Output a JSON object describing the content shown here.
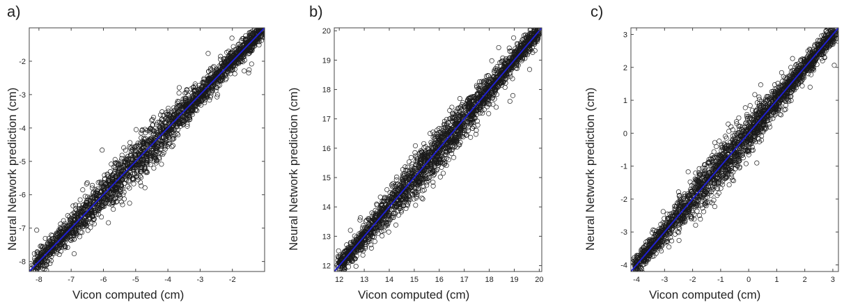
{
  "chart_data": [
    {
      "type": "scatter",
      "panel_label": "a)",
      "xlabel": "Vicon computed (cm)",
      "ylabel": "Neural Network prediction (cm)",
      "xlim": [
        -8.3,
        -1.0
      ],
      "ylim": [
        -8.3,
        -1.0
      ],
      "x_ticks": [
        "-8",
        "-7",
        "-6",
        "-5",
        "-4",
        "-3",
        "-2"
      ],
      "x_tick_values": [
        -8,
        -7,
        -6,
        -5,
        -4,
        -3,
        -2
      ],
      "y_ticks": [
        "-8",
        "-7",
        "-6",
        "-5",
        "-4",
        "-3",
        "-2"
      ],
      "y_tick_values": [
        -8,
        -7,
        -6,
        -5,
        -4,
        -3,
        -2
      ],
      "fit_line": [
        [
          -8.3,
          -8.3
        ],
        [
          -1.0,
          -1.0
        ]
      ],
      "point_range": [
        -8.2,
        -1.05
      ],
      "n_points": 2400,
      "grid": false,
      "marker": "open-circle",
      "marker_color": "#1a1a1a",
      "line_color": "#1f1fd0"
    },
    {
      "type": "scatter",
      "panel_label": "b)",
      "xlabel": "Vicon computed (cm)",
      "ylabel": "Neural Network prediction (cm)",
      "xlim": [
        11.8,
        20.1
      ],
      "ylim": [
        11.8,
        20.1
      ],
      "x_ticks": [
        "12",
        "13",
        "14",
        "15",
        "16",
        "17",
        "18",
        "19",
        "20"
      ],
      "x_tick_values": [
        12,
        13,
        14,
        15,
        16,
        17,
        18,
        19,
        20
      ],
      "y_ticks": [
        "12",
        "13",
        "14",
        "15",
        "16",
        "17",
        "18",
        "19",
        "20"
      ],
      "y_tick_values": [
        12,
        13,
        14,
        15,
        16,
        17,
        18,
        19,
        20
      ],
      "fit_line": [
        [
          11.8,
          11.8
        ],
        [
          20.1,
          20.1
        ]
      ],
      "point_range": [
        12.0,
        20.0
      ],
      "n_points": 2400,
      "grid": false,
      "marker": "open-circle",
      "marker_color": "#1a1a1a",
      "line_color": "#1f1fd0"
    },
    {
      "type": "scatter",
      "panel_label": "c)",
      "xlabel": "Vicon computed (cm)",
      "ylabel": "Neural Network prediction (cm)",
      "xlim": [
        -4.2,
        3.2
      ],
      "ylim": [
        -4.2,
        3.2
      ],
      "x_ticks": [
        "-4",
        "-3",
        "-2",
        "-1",
        "0",
        "1",
        "2",
        "3"
      ],
      "x_tick_values": [
        -4,
        -3,
        -2,
        -1,
        0,
        1,
        2,
        3
      ],
      "y_ticks": [
        "-4",
        "-3",
        "-2",
        "-1",
        "0",
        "1",
        "2",
        "3"
      ],
      "y_tick_values": [
        -4,
        -3,
        -2,
        -1,
        0,
        1,
        2,
        3
      ],
      "fit_line": [
        [
          -4.2,
          -4.2
        ],
        [
          3.2,
          3.2
        ]
      ],
      "point_range": [
        -4.1,
        3.1
      ],
      "n_points": 2400,
      "grid": false,
      "marker": "open-circle",
      "marker_color": "#1a1a1a",
      "line_color": "#1f1fd0"
    }
  ]
}
